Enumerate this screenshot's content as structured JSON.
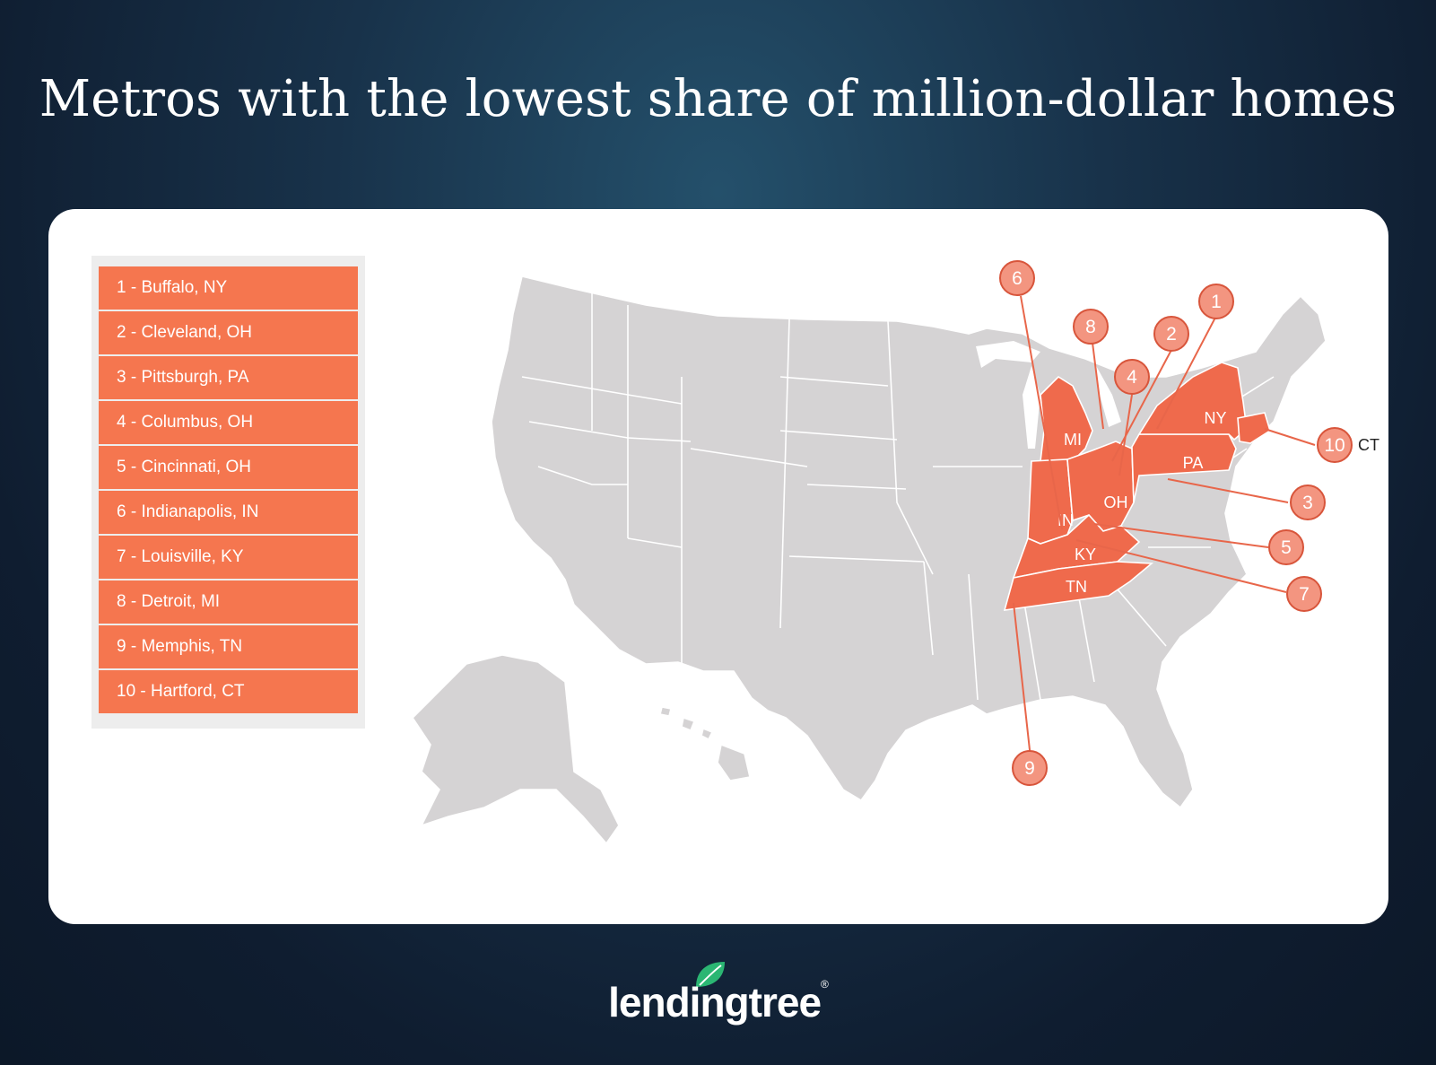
{
  "title": "Metros with the lowest share of million-dollar homes",
  "legend": [
    "1 - Buffalo, NY",
    "2 - Cleveland, OH",
    "3 - Pittsburgh, PA",
    "4 - Columbus, OH",
    "5 - Cincinnati, OH",
    "6 - Indianapolis, IN",
    "7 - Louisville, KY",
    "8 - Detroit, MI",
    "9 - Memphis, TN",
    "10 - Hartford, CT"
  ],
  "states": {
    "NY": "NY",
    "PA": "PA",
    "OH": "OH",
    "MI": "MI",
    "IN": "IN",
    "KY": "KY",
    "TN": "TN",
    "CT": "CT"
  },
  "pins": [
    "1",
    "2",
    "3",
    "4",
    "5",
    "6",
    "7",
    "8",
    "9",
    "10"
  ],
  "colors": {
    "highlight": "#ef6a4c",
    "legend": "#f5764f",
    "land": "#d5d3d4"
  },
  "logo": {
    "text": "lendingtree",
    "mark": "®",
    "icon": "leaf-icon"
  }
}
